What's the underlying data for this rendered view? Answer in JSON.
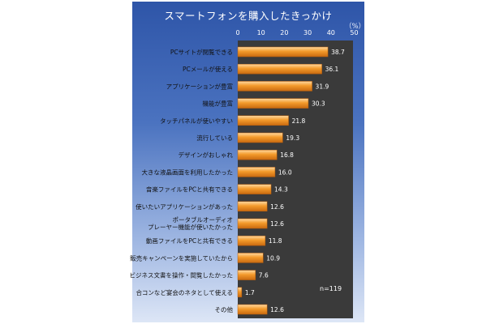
{
  "chart_data": {
    "type": "bar",
    "orientation": "horizontal",
    "title": "スマートフォンを購入したきっかけ",
    "unit": "（%）",
    "note": "n=119",
    "xlim": [
      0,
      50
    ],
    "ticks": [
      0,
      10,
      20,
      30,
      40,
      50
    ],
    "grid": false,
    "bar_color": "#f39a2b",
    "categories": [
      "PCサイトが閲覧できる",
      "PCメールが使える",
      "アプリケーションが豊富",
      "機能が豊富",
      "タッチパネルが使いやすい",
      "流行している",
      "デザインがおしゃれ",
      "大きな液晶画面を利用したかった",
      "音楽ファイルをPCと共有できる",
      "使いたいアプリケーションがあった",
      "ポータブルオーディオ\nプレーヤー機能が使いたかった",
      "動画ファイルをPCと共有できる",
      "販売キャンペーンを実施していたから",
      "ビジネス文書を操作・閲覧したかった",
      "合コンなど宴会のネタとして使える",
      "その他"
    ],
    "values": [
      38.7,
      36.1,
      31.9,
      30.3,
      21.8,
      19.3,
      16.8,
      16.0,
      14.3,
      12.6,
      12.6,
      11.8,
      10.9,
      7.6,
      1.7,
      12.6
    ],
    "value_labels": [
      "38.7",
      "36.1",
      "31.9",
      "30.3",
      "21.8",
      "19.3",
      "16.8",
      "16.0",
      "14.3",
      "12.6",
      "12.6",
      "11.8",
      "10.9",
      "7.6",
      "1.7",
      "12.6"
    ]
  }
}
